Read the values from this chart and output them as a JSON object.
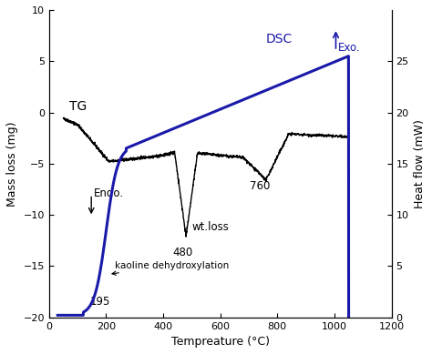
{
  "xlabel": "Tempreature (°C)",
  "ylabel_left": "Mass loss (mg)",
  "ylabel_right": "Heat flow (mW)",
  "xlim": [
    0,
    1200
  ],
  "ylim_left": [
    -20,
    10
  ],
  "ylim_right": [
    0,
    30
  ],
  "tg_color": "black",
  "dsc_color": "#1a1aaa",
  "xticks": [
    0,
    200,
    400,
    600,
    800,
    1000,
    1200
  ],
  "yticks_left": [
    -20,
    -15,
    -10,
    -5,
    0,
    5,
    10
  ],
  "yticks_right": [
    0,
    5,
    10,
    15,
    20,
    25
  ]
}
